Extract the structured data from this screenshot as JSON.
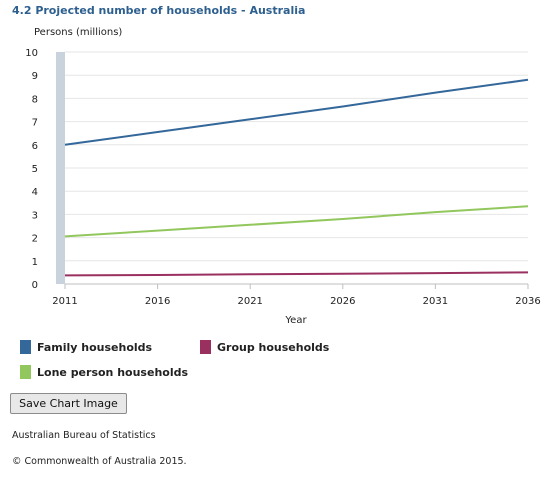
{
  "title": "4.2 Projected number of households - Australia",
  "chart_data": {
    "type": "line",
    "ylabel": "Persons (millions)",
    "xlabel": "Year",
    "xlim": [
      2011,
      2036
    ],
    "ylim": [
      0,
      10
    ],
    "x_ticks": [
      "2011",
      "2016",
      "2021",
      "2026",
      "2031",
      "2036"
    ],
    "y_ticks": [
      "0",
      "1",
      "2",
      "3",
      "4",
      "5",
      "6",
      "7",
      "8",
      "9",
      "10"
    ],
    "grid": true,
    "legend_position": "bottom",
    "x": [
      2011,
      2016,
      2021,
      2026,
      2031,
      2036
    ],
    "series": [
      {
        "name": "Family households",
        "color": "#34679a",
        "values": [
          6.0,
          6.55,
          7.1,
          7.65,
          8.25,
          8.8
        ]
      },
      {
        "name": "Group households",
        "color": "#9a3060",
        "values": [
          0.37,
          0.39,
          0.42,
          0.44,
          0.47,
          0.5
        ]
      },
      {
        "name": "Lone person households",
        "color": "#92c75d",
        "values": [
          2.05,
          2.3,
          2.55,
          2.8,
          3.1,
          3.35
        ]
      }
    ]
  },
  "save_button_label": "Save Chart Image",
  "footer": {
    "source": "Australian Bureau of Statistics",
    "copyright": "© Commonwealth of Australia 2015."
  }
}
